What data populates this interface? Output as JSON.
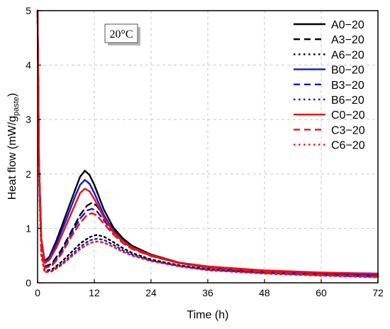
{
  "chart_data": {
    "type": "line",
    "xlabel": "Time (h)",
    "ylabel": "Heat flow (mW/g",
    "ylabel_sub": "paste",
    "ylabel_close": ")",
    "xlim": [
      0,
      72
    ],
    "ylim": [
      0,
      5
    ],
    "xticks": [
      0,
      12,
      24,
      36,
      48,
      60,
      72
    ],
    "yticks": [
      0,
      1,
      2,
      3,
      4,
      5
    ],
    "grid": "dashed",
    "legend_position": "top-right",
    "annotation": "20°C",
    "series": [
      {
        "name": "A0−20",
        "color": "#000000",
        "dash": "solid",
        "points": [
          [
            0,
            5
          ],
          [
            0.3,
            2.2
          ],
          [
            0.8,
            0.8
          ],
          [
            1.5,
            0.4
          ],
          [
            2.5,
            0.48
          ],
          [
            4,
            0.78
          ],
          [
            6,
            1.25
          ],
          [
            8,
            1.72
          ],
          [
            9,
            1.95
          ],
          [
            10,
            2.06
          ],
          [
            11,
            1.98
          ],
          [
            12,
            1.8
          ],
          [
            14,
            1.35
          ],
          [
            16,
            1.02
          ],
          [
            18,
            0.82
          ],
          [
            20,
            0.68
          ],
          [
            24,
            0.52
          ],
          [
            30,
            0.37
          ],
          [
            36,
            0.3
          ],
          [
            48,
            0.22
          ],
          [
            60,
            0.18
          ],
          [
            72,
            0.16
          ]
        ]
      },
      {
        "name": "A3−20",
        "color": "#000000",
        "dash": "dash",
        "points": [
          [
            0,
            5
          ],
          [
            0.3,
            2.1
          ],
          [
            0.8,
            0.6
          ],
          [
            1.5,
            0.3
          ],
          [
            3,
            0.35
          ],
          [
            5,
            0.6
          ],
          [
            7,
            0.92
          ],
          [
            9,
            1.25
          ],
          [
            10.5,
            1.42
          ],
          [
            11.5,
            1.47
          ],
          [
            12.5,
            1.42
          ],
          [
            14,
            1.22
          ],
          [
            16,
            0.98
          ],
          [
            18,
            0.8
          ],
          [
            20,
            0.67
          ],
          [
            24,
            0.52
          ],
          [
            30,
            0.37
          ],
          [
            36,
            0.29
          ],
          [
            48,
            0.21
          ],
          [
            60,
            0.16
          ],
          [
            72,
            0.13
          ]
        ]
      },
      {
        "name": "A6−20",
        "color": "#000000",
        "dash": "dot",
        "points": [
          [
            0,
            5
          ],
          [
            0.3,
            2.0
          ],
          [
            0.8,
            0.5
          ],
          [
            1.5,
            0.22
          ],
          [
            3,
            0.24
          ],
          [
            5,
            0.38
          ],
          [
            7,
            0.55
          ],
          [
            9,
            0.72
          ],
          [
            11,
            0.84
          ],
          [
            12.5,
            0.88
          ],
          [
            14,
            0.85
          ],
          [
            16,
            0.75
          ],
          [
            18,
            0.64
          ],
          [
            20,
            0.55
          ],
          [
            24,
            0.43
          ],
          [
            30,
            0.32
          ],
          [
            36,
            0.25
          ],
          [
            48,
            0.19
          ],
          [
            60,
            0.15
          ],
          [
            72,
            0.12
          ]
        ]
      },
      {
        "name": "B0−20",
        "color": "#1515dd",
        "dash": "solid",
        "points": [
          [
            0,
            5
          ],
          [
            0.3,
            2.2
          ],
          [
            0.8,
            0.8
          ],
          [
            1.5,
            0.38
          ],
          [
            2.5,
            0.46
          ],
          [
            4,
            0.72
          ],
          [
            6,
            1.15
          ],
          [
            8,
            1.6
          ],
          [
            9,
            1.8
          ],
          [
            10,
            1.89
          ],
          [
            11,
            1.82
          ],
          [
            12,
            1.65
          ],
          [
            14,
            1.25
          ],
          [
            16,
            0.96
          ],
          [
            18,
            0.78
          ],
          [
            20,
            0.65
          ],
          [
            24,
            0.5
          ],
          [
            30,
            0.36
          ],
          [
            36,
            0.29
          ],
          [
            48,
            0.21
          ],
          [
            60,
            0.17
          ],
          [
            72,
            0.15
          ]
        ]
      },
      {
        "name": "B3−20",
        "color": "#1515dd",
        "dash": "dash",
        "points": [
          [
            0,
            5
          ],
          [
            0.3,
            2.1
          ],
          [
            0.8,
            0.6
          ],
          [
            1.5,
            0.28
          ],
          [
            3,
            0.33
          ],
          [
            5,
            0.55
          ],
          [
            7,
            0.88
          ],
          [
            9,
            1.18
          ],
          [
            10.5,
            1.33
          ],
          [
            11.5,
            1.36
          ],
          [
            12.5,
            1.32
          ],
          [
            14,
            1.15
          ],
          [
            16,
            0.93
          ],
          [
            18,
            0.76
          ],
          [
            20,
            0.64
          ],
          [
            24,
            0.5
          ],
          [
            30,
            0.36
          ],
          [
            36,
            0.28
          ],
          [
            48,
            0.2
          ],
          [
            60,
            0.15
          ],
          [
            72,
            0.12
          ]
        ]
      },
      {
        "name": "B6−20",
        "color": "#1515dd",
        "dash": "dot",
        "points": [
          [
            0,
            5
          ],
          [
            0.3,
            2.0
          ],
          [
            0.8,
            0.5
          ],
          [
            1.5,
            0.2
          ],
          [
            3,
            0.22
          ],
          [
            5,
            0.34
          ],
          [
            7,
            0.5
          ],
          [
            9,
            0.66
          ],
          [
            11,
            0.78
          ],
          [
            12.5,
            0.81
          ],
          [
            14,
            0.79
          ],
          [
            16,
            0.7
          ],
          [
            18,
            0.6
          ],
          [
            20,
            0.52
          ],
          [
            24,
            0.41
          ],
          [
            30,
            0.31
          ],
          [
            36,
            0.24
          ],
          [
            48,
            0.18
          ],
          [
            60,
            0.14
          ],
          [
            72,
            0.11
          ]
        ]
      },
      {
        "name": "C0−20",
        "color": "#ee1111",
        "dash": "solid",
        "points": [
          [
            0,
            5
          ],
          [
            0.3,
            2.2
          ],
          [
            0.8,
            0.8
          ],
          [
            1.5,
            0.36
          ],
          [
            2.5,
            0.42
          ],
          [
            4,
            0.65
          ],
          [
            6,
            1.05
          ],
          [
            8,
            1.45
          ],
          [
            9,
            1.65
          ],
          [
            10,
            1.73
          ],
          [
            11,
            1.68
          ],
          [
            12,
            1.54
          ],
          [
            14,
            1.2
          ],
          [
            16,
            0.94
          ],
          [
            18,
            0.77
          ],
          [
            20,
            0.65
          ],
          [
            24,
            0.51
          ],
          [
            30,
            0.37
          ],
          [
            36,
            0.3
          ],
          [
            48,
            0.23
          ],
          [
            60,
            0.19
          ],
          [
            72,
            0.17
          ]
        ]
      },
      {
        "name": "C3−20",
        "color": "#ee1111",
        "dash": "dash",
        "points": [
          [
            0,
            5
          ],
          [
            0.3,
            2.1
          ],
          [
            0.8,
            0.6
          ],
          [
            1.5,
            0.27
          ],
          [
            3,
            0.31
          ],
          [
            5,
            0.52
          ],
          [
            7,
            0.83
          ],
          [
            9,
            1.1
          ],
          [
            10.5,
            1.25
          ],
          [
            11.5,
            1.28
          ],
          [
            12.5,
            1.24
          ],
          [
            14,
            1.09
          ],
          [
            16,
            0.89
          ],
          [
            18,
            0.73
          ],
          [
            20,
            0.62
          ],
          [
            24,
            0.49
          ],
          [
            30,
            0.36
          ],
          [
            36,
            0.28
          ],
          [
            48,
            0.2
          ],
          [
            60,
            0.15
          ],
          [
            72,
            0.12
          ]
        ]
      },
      {
        "name": "C6−20",
        "color": "#ee1111",
        "dash": "dot",
        "points": [
          [
            0,
            5
          ],
          [
            0.3,
            2.0
          ],
          [
            0.8,
            0.5
          ],
          [
            1.5,
            0.19
          ],
          [
            3,
            0.21
          ],
          [
            5,
            0.32
          ],
          [
            7,
            0.47
          ],
          [
            9,
            0.62
          ],
          [
            11,
            0.73
          ],
          [
            12.5,
            0.76
          ],
          [
            14,
            0.74
          ],
          [
            16,
            0.66
          ],
          [
            18,
            0.57
          ],
          [
            20,
            0.5
          ],
          [
            24,
            0.4
          ],
          [
            30,
            0.3
          ],
          [
            36,
            0.23
          ],
          [
            48,
            0.17
          ],
          [
            60,
            0.13
          ],
          [
            72,
            0.1
          ]
        ]
      }
    ]
  }
}
